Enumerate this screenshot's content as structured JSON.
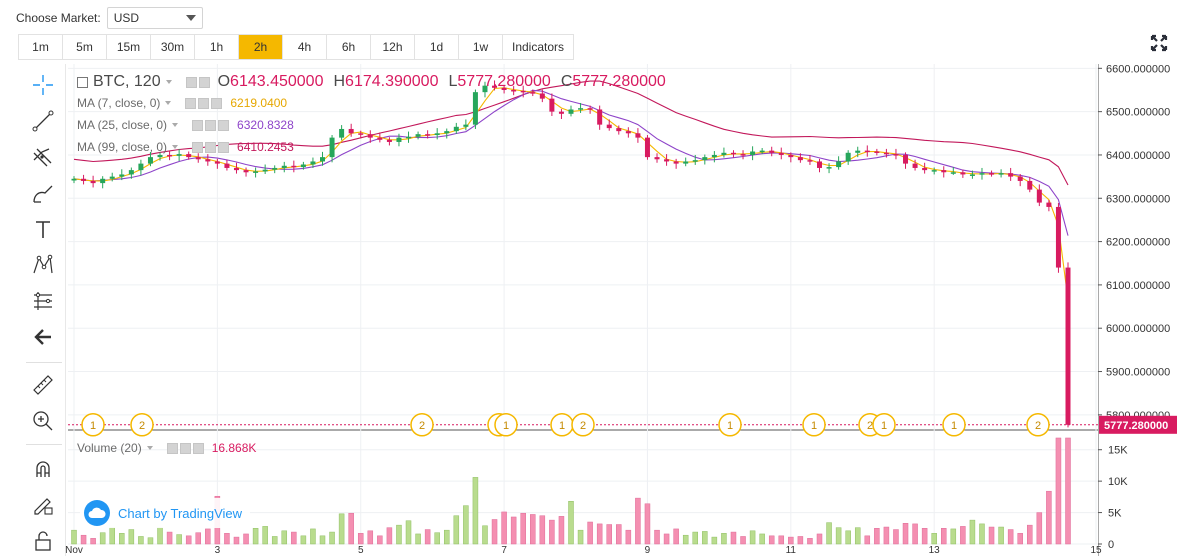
{
  "market": {
    "label": "Choose Market:",
    "value": "USD"
  },
  "intervals": [
    {
      "label": "1m",
      "active": false
    },
    {
      "label": "5m",
      "active": false
    },
    {
      "label": "15m",
      "active": false
    },
    {
      "label": "30m",
      "active": false
    },
    {
      "label": "1h",
      "active": false
    },
    {
      "label": "2h",
      "active": true
    },
    {
      "label": "4h",
      "active": false
    },
    {
      "label": "6h",
      "active": false
    },
    {
      "label": "12h",
      "active": false
    },
    {
      "label": "1d",
      "active": false
    },
    {
      "label": "1w",
      "active": false
    }
  ],
  "indicators_label": "Indicators",
  "legend": {
    "symbol": "BTC, 120",
    "o_label": "O",
    "o_value": "6143.450000",
    "h_label": "H",
    "h_value": "6174.390000",
    "l_label": "L",
    "l_value": "5777.280000",
    "c_label": "C",
    "c_value": "5777.280000",
    "ma7_label": "MA (7, close, 0)",
    "ma7_value": "6219.0400",
    "ma25_label": "MA (25, close, 0)",
    "ma25_value": "6320.8328",
    "ma99_label": "MA (99, close, 0)",
    "ma99_value": "6410.2453",
    "volume_label": "Volume (20)",
    "volume_value": "16.868K"
  },
  "watermark": "Chart by TradingView",
  "last_price_label": "5777.280000",
  "colors": {
    "up": "#a9d08e",
    "up_body": "#26a65b",
    "down": "#d81b60",
    "ma7": "#f5b800",
    "ma25": "#8e44c9",
    "ma99": "#c2185b",
    "vol_up": "#b9dc8e",
    "vol_down": "#f48fb1",
    "accent": "#f5b800",
    "brand": "#2196f3"
  },
  "chart_data": {
    "type": "candlestick",
    "x_ticks": [
      "Nov",
      "3",
      "5",
      "7",
      "9",
      "11",
      "13",
      "15"
    ],
    "price_ticks": [
      "6600.000000",
      "6500.000000",
      "6400.000000",
      "6300.000000",
      "6200.000000",
      "6100.000000",
      "6000.000000",
      "5900.000000",
      "5800.000000"
    ],
    "volume_ticks": [
      "15K",
      "10K",
      "5K",
      "0"
    ],
    "ylim": [
      5765,
      6610
    ],
    "vol_ylim": [
      0,
      17500
    ],
    "events": [
      "1",
      "2",
      "2",
      "2",
      "1",
      "1",
      "2",
      "1",
      "1",
      "2",
      "1",
      "1",
      "2"
    ],
    "closes": [
      6345,
      6340,
      6335,
      6345,
      6350,
      6355,
      6365,
      6380,
      6395,
      6400,
      6398,
      6402,
      6395,
      6390,
      6385,
      6380,
      6370,
      6365,
      6360,
      6362,
      6366,
      6370,
      6375,
      6372,
      6378,
      6385,
      6395,
      6440,
      6460,
      6450,
      6448,
      6440,
      6435,
      6430,
      6440,
      6442,
      6448,
      6446,
      6450,
      6455,
      6465,
      6470,
      6545,
      6560,
      6555,
      6550,
      6548,
      6545,
      6542,
      6530,
      6500,
      6495,
      6505,
      6508,
      6505,
      6470,
      6462,
      6455,
      6450,
      6440,
      6395,
      6390,
      6385,
      6380,
      6385,
      6388,
      6395,
      6400,
      6405,
      6402,
      6400,
      6408,
      6410,
      6405,
      6400,
      6395,
      6388,
      6385,
      6370,
      6372,
      6385,
      6405,
      6410,
      6408,
      6405,
      6402,
      6400,
      6380,
      6370,
      6365,
      6365,
      6360,
      6360,
      6355,
      6355,
      6358,
      6356,
      6358,
      6350,
      6340,
      6320,
      6290,
      6280,
      6140,
      5777
    ],
    "volumes": [
      2200,
      1400,
      900,
      1800,
      2600,
      1700,
      2300,
      1200,
      1000,
      2600,
      1900,
      1500,
      1300,
      1800,
      2400,
      7600,
      1700,
      1100,
      1600,
      2500,
      2800,
      1200,
      2100,
      1900,
      1300,
      2400,
      1300,
      1900,
      4800,
      4900,
      1700,
      2100,
      1300,
      2600,
      3000,
      3700,
      1600,
      2300,
      1800,
      2200,
      4500,
      6100,
      10600,
      2900,
      3900,
      5100,
      4300,
      4900,
      4700,
      4500,
      3800,
      4400,
      6800,
      2200,
      3500,
      3200,
      3100,
      3100,
      2200,
      7300,
      6400,
      2200,
      1600,
      2400,
      1400,
      1900,
      2000,
      1100,
      1700,
      1900,
      1200,
      2100,
      1600,
      1300,
      1300,
      1100,
      1200,
      900,
      1600,
      3400,
      2600,
      2100,
      2600,
      1300,
      2500,
      2700,
      2300,
      3300,
      3200,
      2500,
      1700,
      2500,
      2400,
      2800,
      3800,
      3200,
      2700,
      2700,
      2300,
      1700,
      3000,
      5000,
      8400,
      16868,
      16868
    ]
  }
}
